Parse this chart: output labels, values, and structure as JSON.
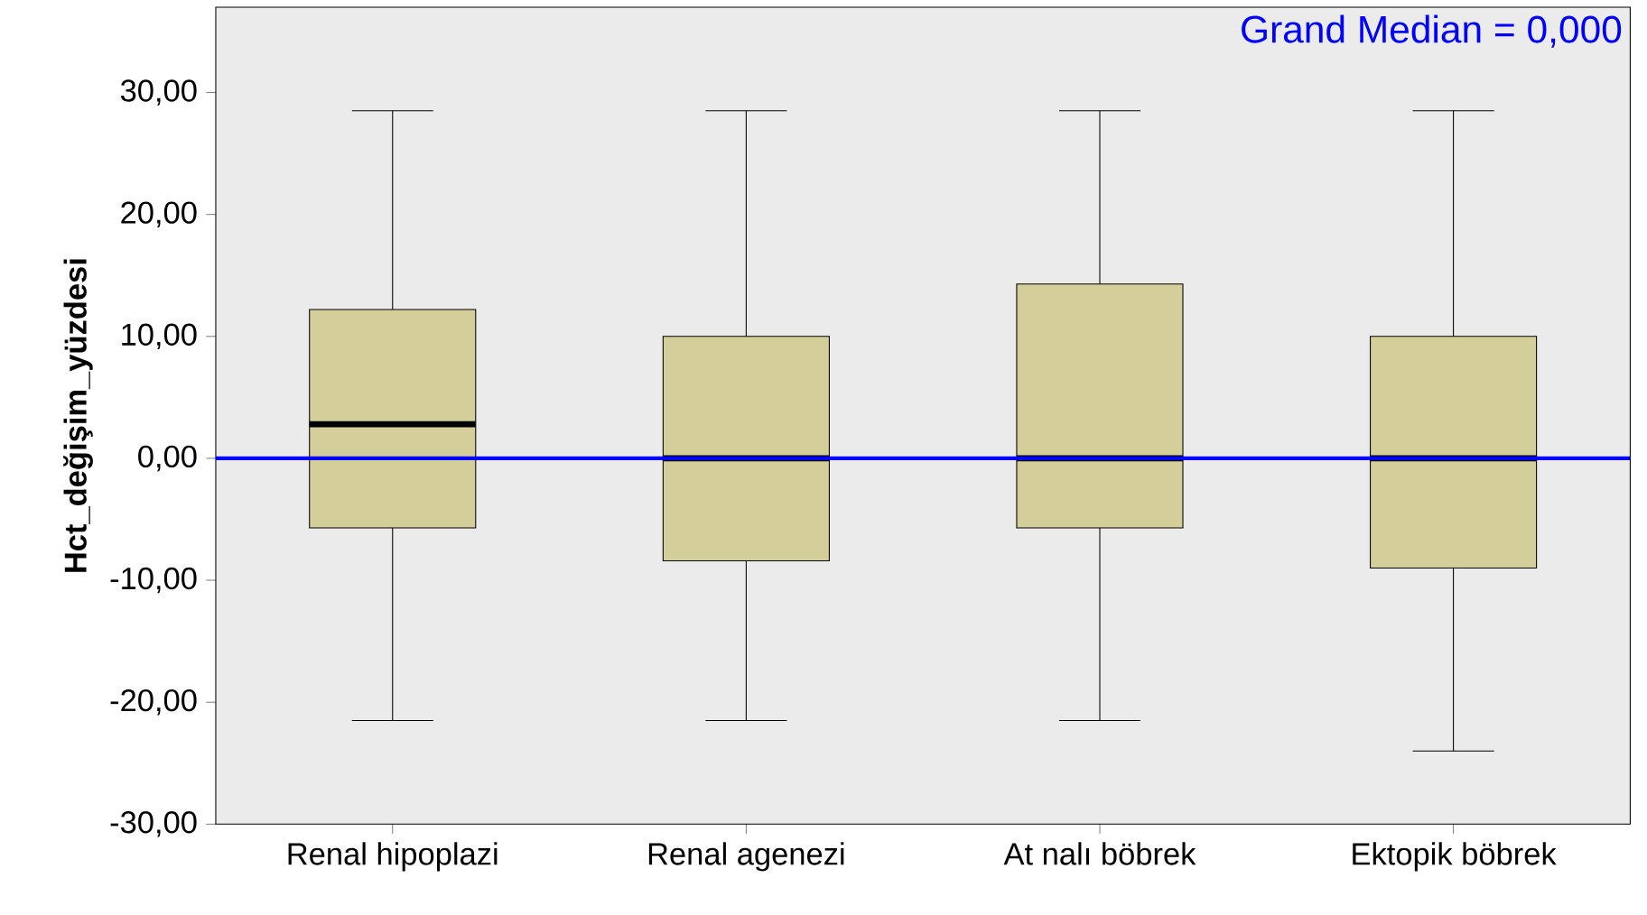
{
  "chart_data": {
    "type": "box",
    "ylabel": "Hct_değişim_yüzdesi",
    "categories": [
      "Renal hipoplazi",
      "Renal agenezi",
      "At nalı böbrek",
      "Ektopik böbrek"
    ],
    "series": [
      {
        "color": "#d3ce9a",
        "boxes": [
          {
            "low": -21.5,
            "q1": -5.7,
            "median": 2.8,
            "q3": 12.2,
            "high": 28.5
          },
          {
            "low": -21.5,
            "q1": -8.4,
            "median": 0,
            "q3": 10.0,
            "high": 28.5
          },
          {
            "low": -21.5,
            "q1": -5.7,
            "median": 0,
            "q3": 14.3,
            "high": 28.5
          },
          {
            "low": -24.0,
            "q1": -9.0,
            "median": 0,
            "q3": 10.0,
            "high": 28.5
          }
        ]
      }
    ],
    "ylim": [
      -30,
      37
    ],
    "yticks": [
      {
        "value": -30,
        "label": "-30,00"
      },
      {
        "value": -20,
        "label": "-20,00"
      },
      {
        "value": -10,
        "label": "-10,00"
      },
      {
        "value": 0,
        "label": "0,00"
      },
      {
        "value": 10,
        "label": "10,00"
      },
      {
        "value": 20,
        "label": "20,00"
      },
      {
        "value": 30,
        "label": "30,00"
      }
    ],
    "ref_lines": [
      {
        "axis": "y",
        "value": 0,
        "label": "Grand Median = 0,000",
        "color": "#0000ff"
      }
    ]
  }
}
